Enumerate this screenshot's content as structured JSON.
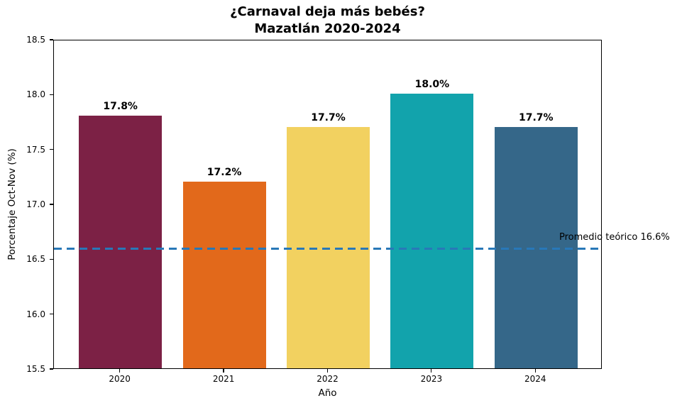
{
  "figure": {
    "title_line1": "¿Carnaval deja más bebés?",
    "title_line2": "Mazatlán 2020-2024"
  },
  "chart_data": {
    "type": "bar",
    "title": "¿Carnaval deja más bebés? Mazatlán 2020-2024",
    "categories": [
      "2020",
      "2021",
      "2022",
      "2023",
      "2024"
    ],
    "values": [
      17.8,
      17.2,
      17.7,
      18.0,
      17.7
    ],
    "bar_labels": [
      "17.8%",
      "17.2%",
      "17.7%",
      "18.0%",
      "17.7%"
    ],
    "bar_colors": [
      "#7C2145",
      "#E2691B",
      "#F2D160",
      "#12A3AC",
      "#356789"
    ],
    "xlabel": "Año",
    "ylabel": "Porcentaje Oct-Nov (%)",
    "ylim": [
      15.5,
      18.5
    ],
    "xlim": [
      -0.64,
      4.64
    ],
    "yticks": [
      15.5,
      16.0,
      16.5,
      17.0,
      17.5,
      18.0,
      18.5
    ],
    "bar_width_units": 0.8,
    "grid": false,
    "legend": false,
    "background": "#ffffff",
    "reference_line": {
      "value": 16.6,
      "label": "Promedio teórico 16.6%",
      "color": "#2878B8",
      "style": "dashed"
    }
  }
}
